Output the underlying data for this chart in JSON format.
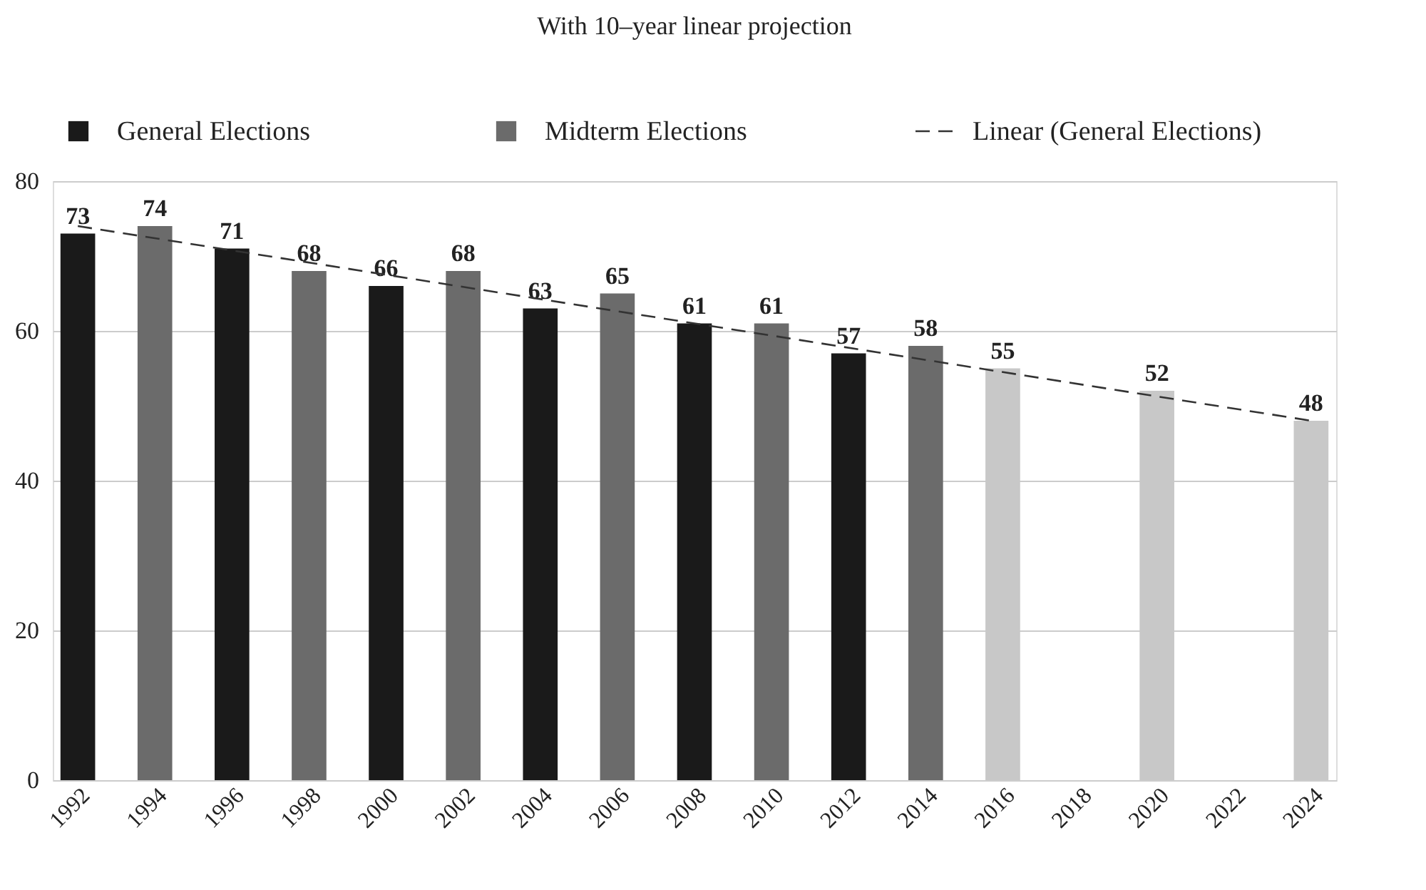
{
  "chart_data": {
    "type": "bar",
    "title": "With 10–year linear projection",
    "categories": [
      "1992",
      "1994",
      "1996",
      "1998",
      "2000",
      "2002",
      "2004",
      "2006",
      "2008",
      "2010",
      "2012",
      "2014",
      "2016",
      "2018",
      "2020",
      "2022",
      "2024"
    ],
    "series": [
      {
        "name": "General Elections",
        "color": "#1a1a1a",
        "values": [
          73,
          null,
          71,
          null,
          66,
          null,
          63,
          null,
          61,
          null,
          57,
          null,
          null,
          null,
          null,
          null,
          null
        ],
        "value_labels": [
          "73",
          null,
          "71",
          null,
          "66",
          null,
          "63",
          null,
          "61",
          null,
          "57",
          null,
          null,
          null,
          null,
          null,
          null
        ]
      },
      {
        "name": "Midterm Elections",
        "color": "#6b6b6b",
        "values": [
          null,
          74,
          null,
          68,
          null,
          68,
          null,
          65,
          null,
          61,
          null,
          58,
          null,
          null,
          null,
          null,
          null
        ],
        "value_labels": [
          null,
          "74",
          null,
          "68",
          null,
          "68",
          null,
          "65",
          null,
          "61",
          null,
          "58",
          null,
          null,
          null,
          null,
          null
        ]
      },
      {
        "color": "#c8c8c8",
        "values": [
          null,
          null,
          null,
          null,
          null,
          null,
          null,
          null,
          null,
          null,
          null,
          null,
          55,
          null,
          52,
          null,
          48
        ],
        "value_labels": [
          null,
          null,
          null,
          null,
          null,
          null,
          null,
          null,
          null,
          null,
          null,
          null,
          "55",
          null,
          "52",
          null,
          "48"
        ]
      },
      {
        "name": "Linear (General Elections)",
        "type": "line",
        "line_style": "dashed",
        "color": "#333333",
        "values": [
          74,
          null,
          null,
          null,
          null,
          null,
          null,
          null,
          null,
          null,
          null,
          null,
          null,
          null,
          null,
          null,
          48
        ]
      }
    ],
    "ylim": [
      0,
      80
    ],
    "yticks": [
      0,
      20,
      40,
      60,
      80
    ],
    "grid": "y",
    "legend": "top"
  }
}
